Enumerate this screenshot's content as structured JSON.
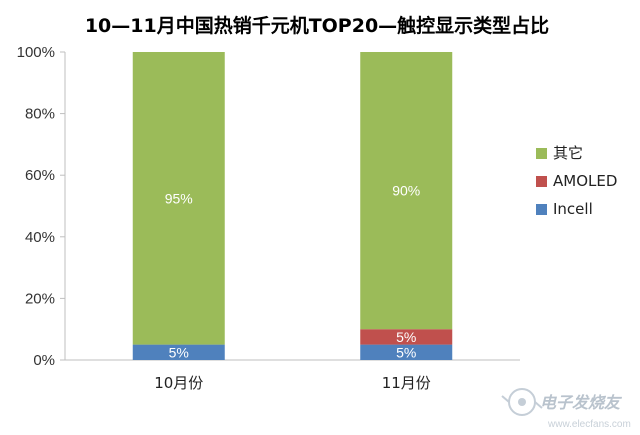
{
  "chart_data": {
    "type": "bar",
    "stacked": true,
    "title": "10—11月中国热销千元机TOP20—触控显示类型占比",
    "categories": [
      "10月份",
      "11月份"
    ],
    "series": [
      {
        "name": "Incell",
        "color": "#4f81bd",
        "values": [
          5,
          5
        ],
        "labels": [
          "5%",
          "5%"
        ]
      },
      {
        "name": "AMOLED",
        "color": "#c0504d",
        "values": [
          0,
          5
        ],
        "labels": [
          "",
          "5%"
        ]
      },
      {
        "name": "其它",
        "color": "#9bbb59",
        "values": [
          95,
          90
        ],
        "labels": [
          "95%",
          "90%"
        ]
      }
    ],
    "legend_order": [
      "其它",
      "AMOLED",
      "Incell"
    ],
    "ylim": [
      0,
      100
    ],
    "yticks": [
      0,
      20,
      40,
      60,
      80,
      100
    ],
    "ytick_labels": [
      "0%",
      "20%",
      "40%",
      "60%",
      "80%",
      "100%"
    ],
    "grid": false,
    "legend_position": "right"
  },
  "watermark": {
    "text": "电子发烧友",
    "url": "www.elecfans.com"
  }
}
